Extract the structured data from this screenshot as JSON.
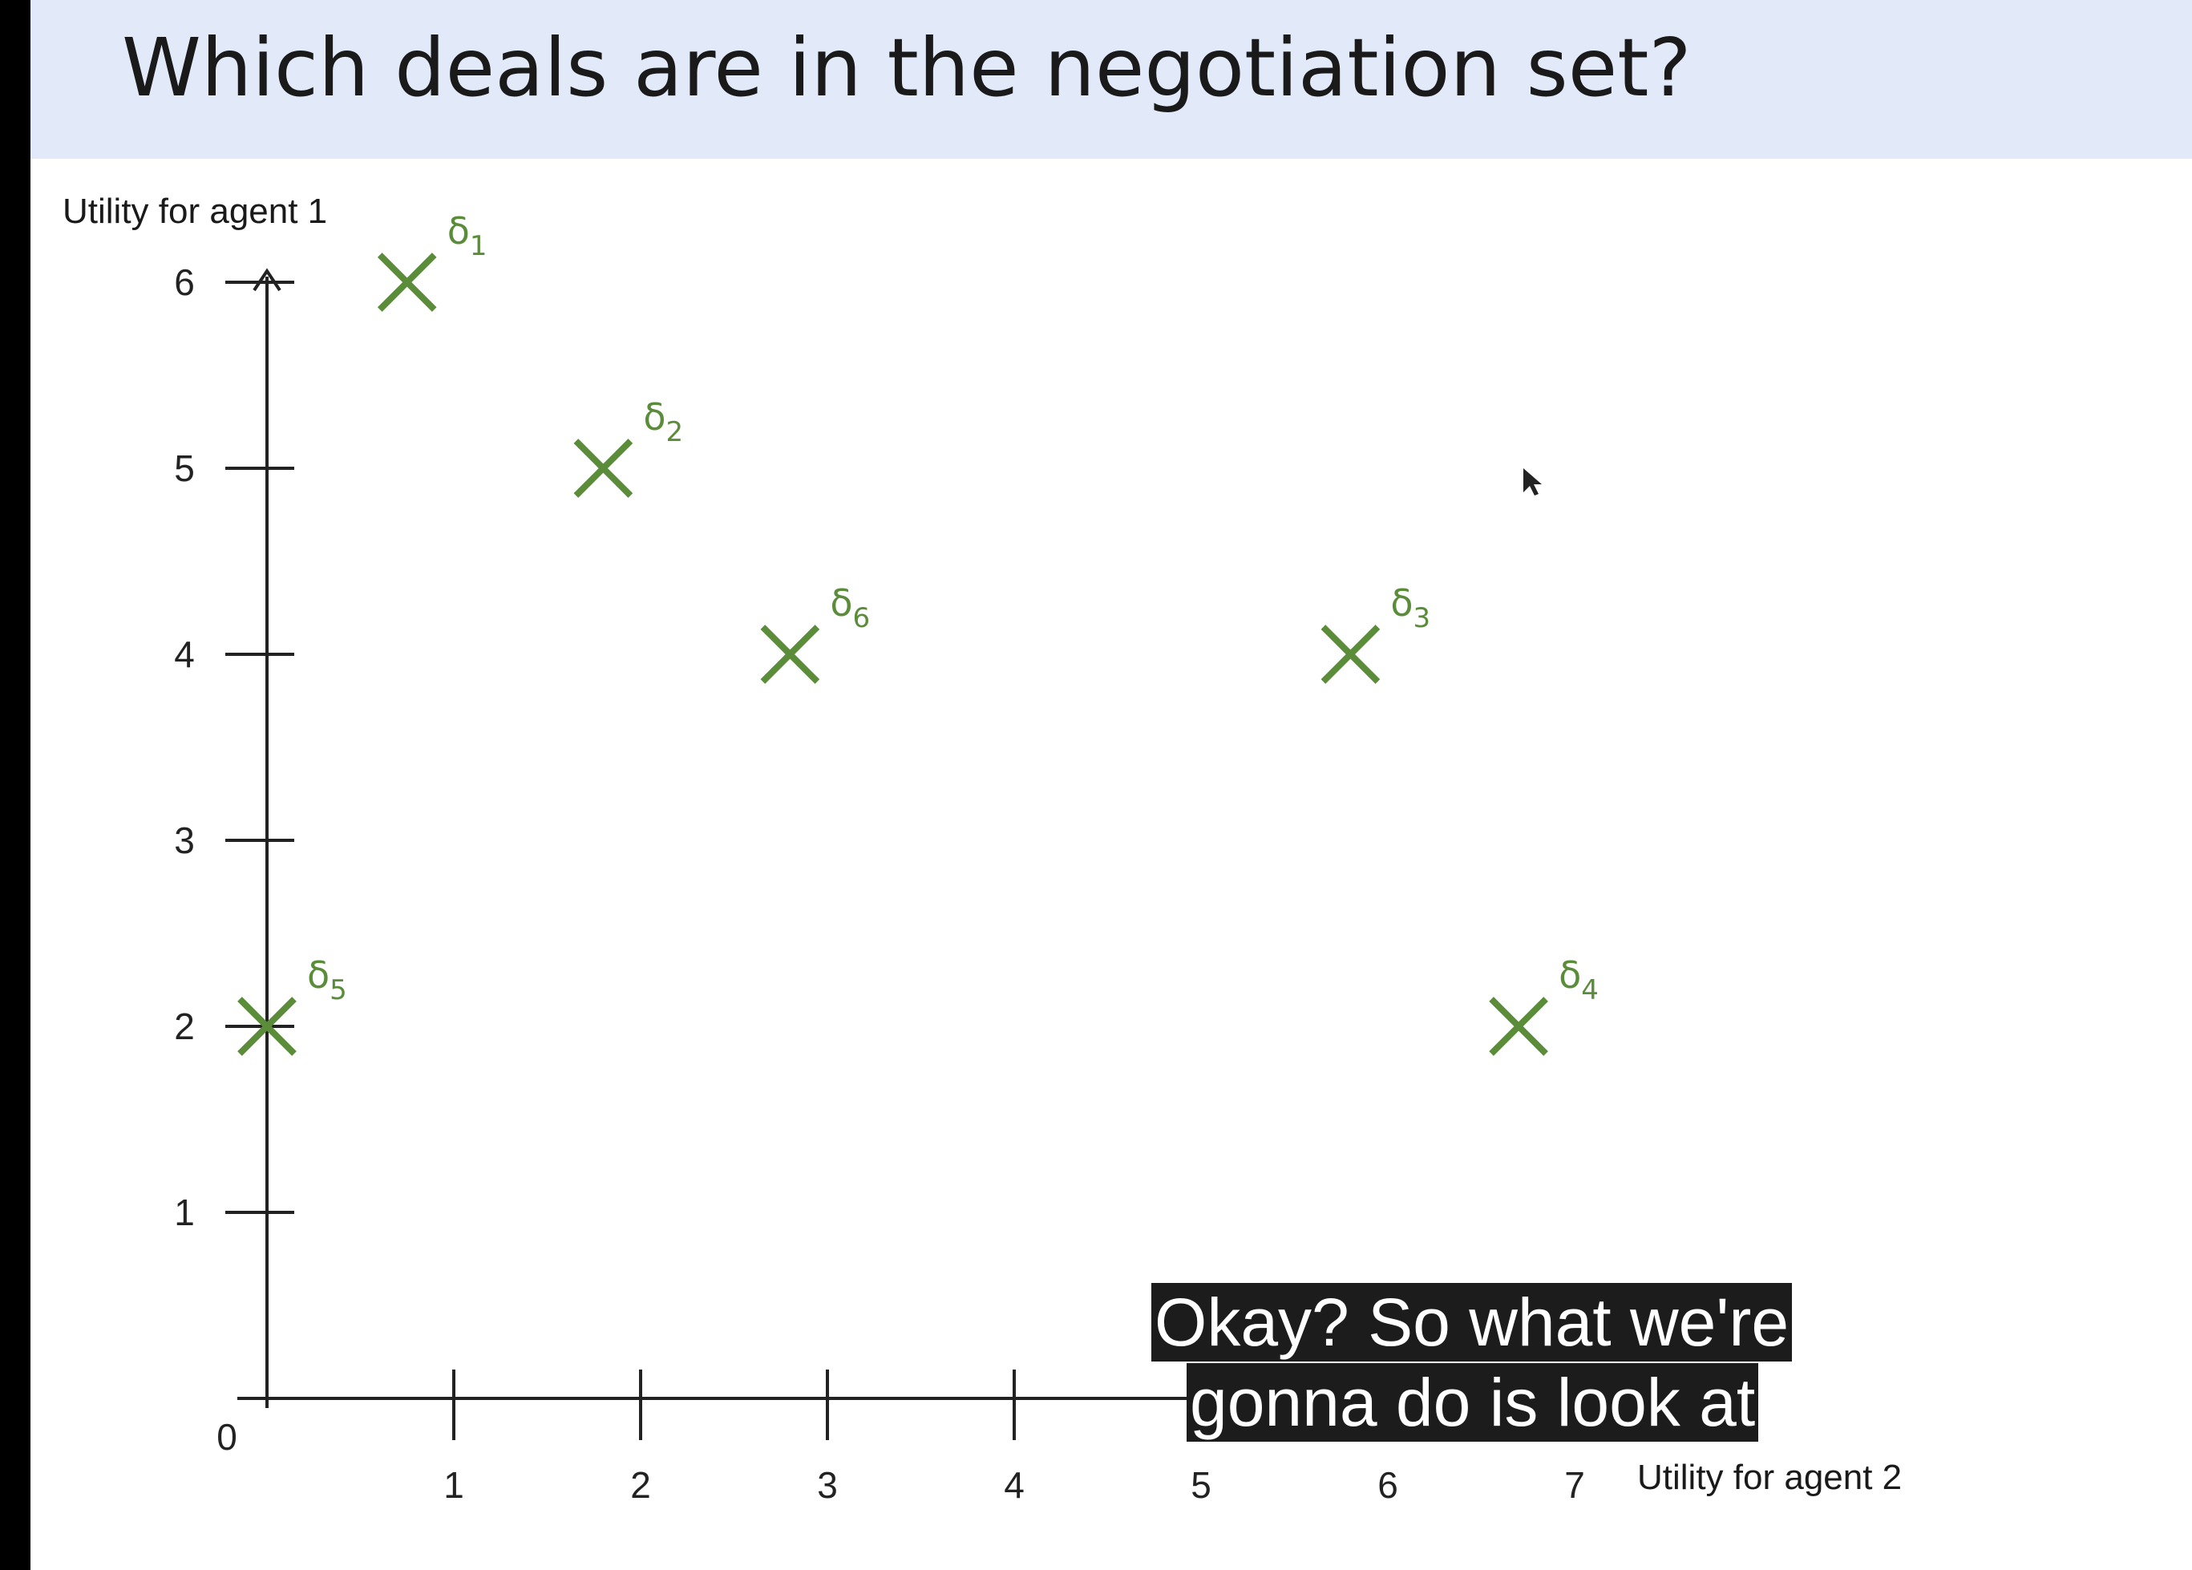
{
  "slide": {
    "title": "Which deals are in the negotiation set?"
  },
  "caption": {
    "lines": [
      "Okay? So what we're",
      "gonna do is look at"
    ]
  },
  "colors": {
    "header_bg": "#e2e9f8",
    "marker": "#5a8c3a",
    "axis": "#222222",
    "caption_bg": "#1c1c1c"
  },
  "icons": {
    "cursor": "mouse-pointer-icon",
    "arrow": "arrow-up-icon"
  },
  "chart_data": {
    "type": "scatter",
    "xlabel": "Utility for agent 2",
    "ylabel": "Utility for agent 1",
    "xlim": [
      0,
      7
    ],
    "ylim": [
      0,
      6
    ],
    "origin_label": "0",
    "x_ticks": [
      "1",
      "2",
      "3",
      "4",
      "5",
      "6",
      "7"
    ],
    "y_ticks": [
      "1",
      "2",
      "3",
      "4",
      "5",
      "6"
    ],
    "grid": false,
    "points": [
      {
        "name": "δ",
        "sub": "1",
        "x": 0.75,
        "y": 6
      },
      {
        "name": "δ",
        "sub": "2",
        "x": 1.8,
        "y": 5
      },
      {
        "name": "δ",
        "sub": "6",
        "x": 2.8,
        "y": 4
      },
      {
        "name": "δ",
        "sub": "3",
        "x": 5.8,
        "y": 4
      },
      {
        "name": "δ",
        "sub": "4",
        "x": 6.7,
        "y": 2
      },
      {
        "name": "δ",
        "sub": "5",
        "x": 0,
        "y": 2
      }
    ]
  }
}
